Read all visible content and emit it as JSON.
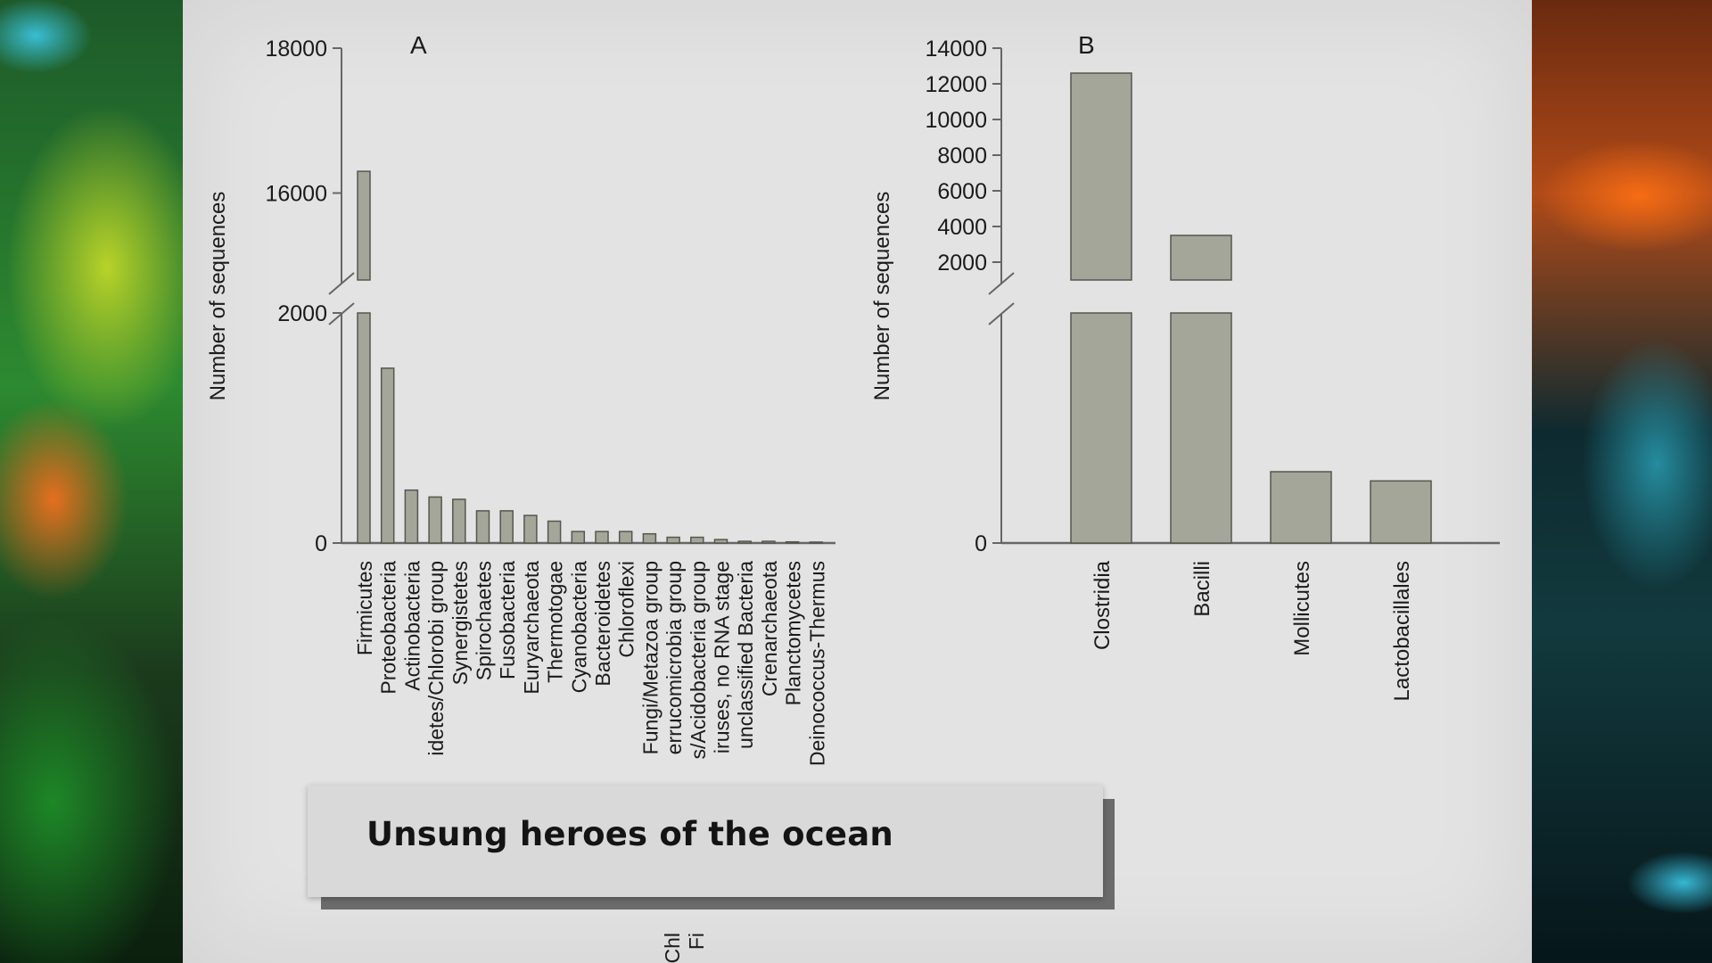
{
  "caption": {
    "title": "Unsung heroes of the ocean"
  },
  "colors": {
    "bar_fill": "#a5a69a",
    "bar_stroke": "#55564e",
    "axis": "#666666",
    "slide_bg": "#e3e3e3"
  },
  "chart_data": [
    {
      "type": "bar",
      "panel_label": "A",
      "ylabel": "Number of sequences",
      "axis_break": {
        "lower": [
          0,
          2000
        ],
        "upper": [
          14800,
          18000
        ]
      },
      "yticks": [
        0,
        2000,
        16000,
        18000
      ],
      "categories": [
        "Firmicutes",
        "Proteobacteria",
        "Actinobacteria",
        "idetes/Chlorobi group",
        "Synergistetes",
        "Spirochaetes",
        "Fusobacteria",
        "Euryarchaeota",
        "Thermotogae",
        "Cyanobacteria",
        "Bacteroidetes",
        "Chloroflexi",
        "Fungi/Metazoa group",
        "errucomicrobia group",
        "s/Acidobacteria group",
        "iruses, no RNA stage",
        "unclassified Bacteria",
        "Crenarchaeota",
        "Planctomycetes",
        "Deinococcus-Thermus"
      ],
      "values": [
        16300,
        1520,
        460,
        400,
        380,
        280,
        280,
        240,
        190,
        100,
        100,
        100,
        80,
        50,
        50,
        30,
        15,
        15,
        10,
        8
      ],
      "clipped_labels": [
        "Chl",
        "Fi"
      ]
    },
    {
      "type": "bar",
      "panel_label": "B",
      "ylabel": "Number of sequences",
      "axis_break": {
        "lower": [
          0,
          2000
        ],
        "upper": [
          1000,
          14000
        ]
      },
      "yticks": [
        0,
        2000,
        4000,
        6000,
        8000,
        10000,
        12000,
        14000
      ],
      "categories": [
        "Clostridia",
        "Bacilli",
        "Mollicutes",
        "Lactobacillales"
      ],
      "values": [
        12600,
        3500,
        620,
        540
      ]
    }
  ]
}
